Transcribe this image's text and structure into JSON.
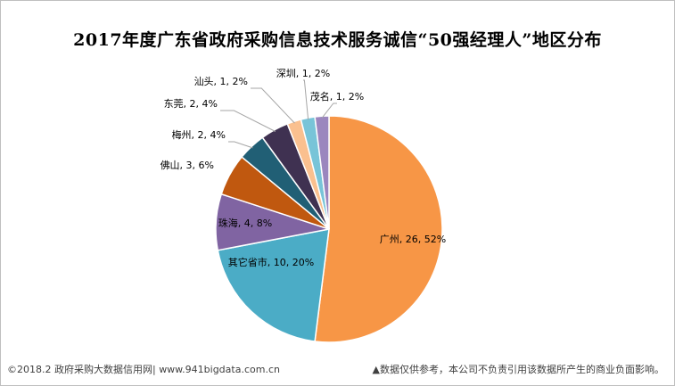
{
  "chart_data": {
    "type": "pie",
    "title": "2017年度广东省政府采购信息技术服务诚信“50强经理人”地区分布",
    "slices": [
      {
        "label": "广州, 26, 52%",
        "name": "广州",
        "value": 26,
        "percent": 52,
        "color": "#f79646"
      },
      {
        "label": "其它省市, 10, 20%",
        "name": "其它省市",
        "value": 10,
        "percent": 20,
        "color": "#4bacc6"
      },
      {
        "label": "珠海, 4, 8%",
        "name": "珠海",
        "value": 4,
        "percent": 8,
        "color": "#8064a2"
      },
      {
        "label": "佛山, 3, 6%",
        "name": "佛山",
        "value": 3,
        "percent": 6,
        "color": "#c0580f"
      },
      {
        "label": "梅州, 2, 4%",
        "name": "梅州",
        "value": 2,
        "percent": 4,
        "color": "#215f75"
      },
      {
        "label": "东莞, 2, 4%",
        "name": "东莞",
        "value": 2,
        "percent": 4,
        "color": "#3f3151"
      },
      {
        "label": "汕头, 1, 2%",
        "name": "汕头",
        "value": 1,
        "percent": 2,
        "color": "#fac08f"
      },
      {
        "label": "深圳, 1, 2%",
        "name": "深圳",
        "value": 1,
        "percent": 2,
        "color": "#78c4d8"
      },
      {
        "label": "茂名, 1, 2%",
        "name": "茂名",
        "value": 1,
        "percent": 2,
        "color": "#9b86be"
      }
    ]
  },
  "footer": {
    "source": "©2018.2 政府采购大数据信用网| www.941bigdata.com.cn",
    "disclaimer": "▲数据仅供参考，本公司不负责引用该数据所产生的商业负面影响。"
  }
}
